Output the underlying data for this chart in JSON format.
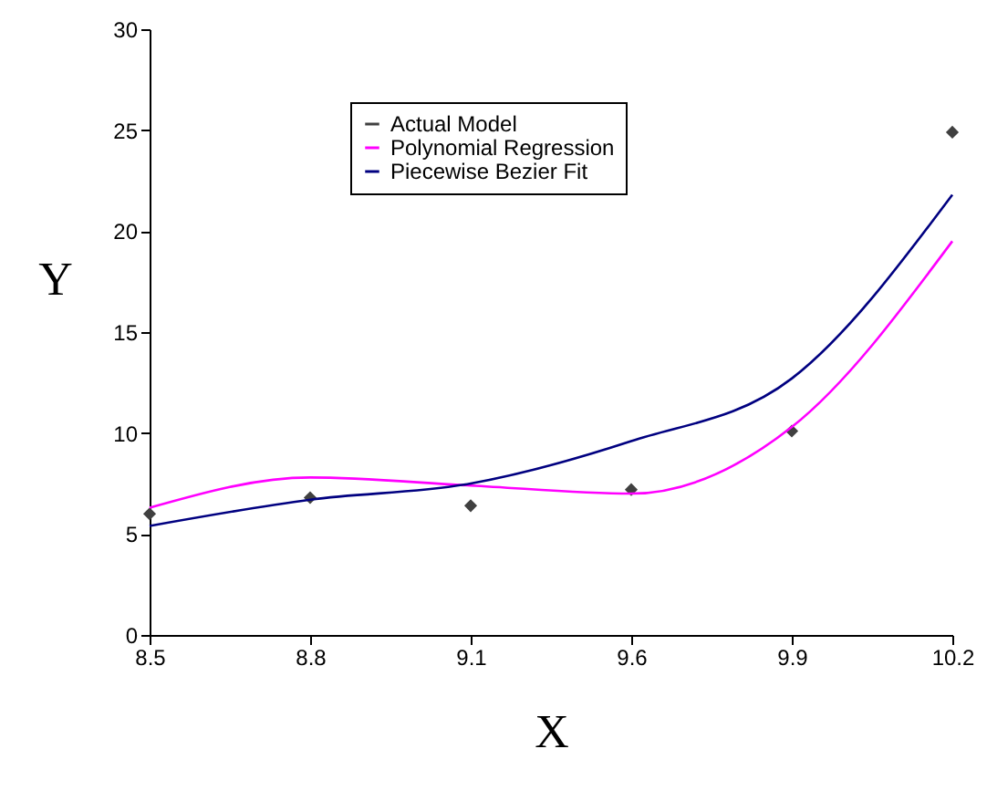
{
  "chart_data": {
    "type": "scatter",
    "xlabel": "X",
    "ylabel": "Y",
    "categories": [
      "8.5",
      "8.8",
      "9.1",
      "9.6",
      "9.9",
      "10.2"
    ],
    "series": [
      {
        "name": "Actual Model",
        "marker": "diamond",
        "color": "#404040",
        "values": [
          6.0,
          6.8,
          6.4,
          7.2,
          10.1,
          24.9
        ]
      },
      {
        "name": "Polynomial Regression",
        "type": "line",
        "marker": "none",
        "color": "#ff00ff",
        "values": [
          6.3,
          7.8,
          7.4,
          7.0,
          10.3,
          19.5
        ]
      },
      {
        "name": "Piecewise Bezier Fit",
        "type": "line",
        "marker": "none",
        "color": "#000080",
        "values": [
          5.4,
          6.7,
          7.5,
          9.6,
          12.7,
          21.8
        ]
      }
    ],
    "ylim": [
      0,
      30
    ],
    "yticks": [
      0,
      5,
      10,
      15,
      20,
      25,
      30
    ],
    "grid": false,
    "legend": "top",
    "line_style": "solid"
  }
}
